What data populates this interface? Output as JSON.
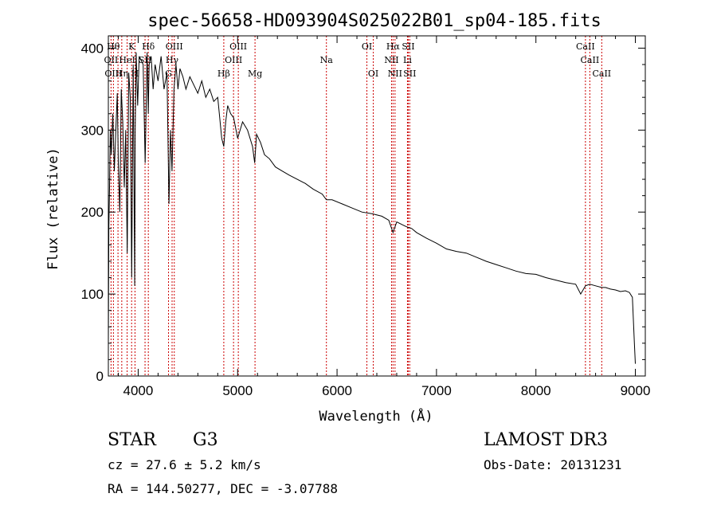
{
  "chart_data": {
    "type": "line",
    "title": "spec-56658-HD093904S025022B01_sp04-185.fits",
    "xlabel": "Wavelength (Å)",
    "ylabel": "Flux (relative)",
    "xlim": [
      3700,
      9100
    ],
    "ylim": [
      0,
      415
    ],
    "xticks": [
      4000,
      5000,
      6000,
      7000,
      8000,
      9000
    ],
    "yticks": [
      0,
      100,
      200,
      300,
      400
    ],
    "tick_labels_x": [
      "4000",
      "5000",
      "6000",
      "7000",
      "8000",
      "9000"
    ],
    "tick_labels_y": [
      "0",
      "100",
      "200",
      "300",
      "400"
    ],
    "series": [
      {
        "name": "flux",
        "x": [
          3700,
          3705,
          3712,
          3720,
          3730,
          3745,
          3760,
          3775,
          3790,
          3800,
          3815,
          3830,
          3845,
          3860,
          3875,
          3890,
          3905,
          3920,
          3935,
          3950,
          3965,
          3970,
          3980,
          3995,
          4010,
          4030,
          4050,
          4070,
          4090,
          4101,
          4110,
          4130,
          4150,
          4170,
          4200,
          4230,
          4260,
          4290,
          4310,
          4325,
          4340,
          4360,
          4380,
          4400,
          4420,
          4450,
          4480,
          4520,
          4560,
          4600,
          4640,
          4680,
          4720,
          4760,
          4800,
          4840,
          4861,
          4880,
          4900,
          4930,
          4960,
          5000,
          5050,
          5100,
          5150,
          5172,
          5190,
          5230,
          5270,
          5320,
          5380,
          5450,
          5520,
          5600,
          5680,
          5760,
          5850,
          5893,
          5950,
          6050,
          6150,
          6250,
          6350,
          6450,
          6520,
          6563,
          6600,
          6650,
          6700,
          6750,
          6800,
          6900,
          7000,
          7100,
          7200,
          7300,
          7400,
          7500,
          7600,
          7700,
          7800,
          7900,
          8000,
          8100,
          8200,
          8300,
          8400,
          8450,
          8498,
          8542,
          8600,
          8662,
          8700,
          8750,
          8800,
          8850,
          8900,
          8940,
          8970,
          8990,
          9000
        ],
        "values": [
          40,
          180,
          230,
          300,
          270,
          320,
          250,
          300,
          345,
          260,
          200,
          350,
          310,
          230,
          300,
          150,
          370,
          340,
          120,
          380,
          110,
          300,
          395,
          330,
          390,
          385,
          380,
          260,
          395,
          320,
          380,
          390,
          350,
          380,
          360,
          390,
          350,
          370,
          210,
          300,
          250,
          350,
          380,
          350,
          375,
          365,
          350,
          365,
          355,
          345,
          360,
          340,
          350,
          335,
          340,
          290,
          280,
          310,
          330,
          320,
          315,
          290,
          310,
          300,
          280,
          260,
          295,
          285,
          270,
          265,
          255,
          250,
          245,
          240,
          235,
          228,
          222,
          215,
          215,
          210,
          205,
          200,
          198,
          195,
          190,
          175,
          188,
          185,
          182,
          180,
          175,
          168,
          162,
          155,
          152,
          150,
          145,
          140,
          136,
          132,
          128,
          125,
          124,
          120,
          117,
          114,
          112,
          100,
          110,
          112,
          110,
          108,
          108,
          106,
          105,
          103,
          104,
          102,
          96,
          40,
          15
        ]
      }
    ],
    "lines": [
      {
        "name": "Hθ",
        "wavelength": 3797
      },
      {
        "name": "OII",
        "wavelength": 3727
      },
      {
        "name": "OIII",
        "wavelength": 3751
      },
      {
        "name": "Hη",
        "wavelength": 3835
      },
      {
        "name": "HeI",
        "wavelength": 3889
      },
      {
        "name": "K",
        "wavelength": 3934
      },
      {
        "name": "H",
        "wavelength": 3968
      },
      {
        "name": "SII",
        "wavelength": 4069
      },
      {
        "name": "Hδ",
        "wavelength": 4102
      },
      {
        "name": "OIII",
        "wavelength": 4363
      },
      {
        "name": "Hγ",
        "wavelength": 4341
      },
      {
        "name": "G",
        "wavelength": 4305
      },
      {
        "name": "Hβ",
        "wavelength": 4861
      },
      {
        "name": "OIII",
        "wavelength": 4959
      },
      {
        "name": "OIII",
        "wavelength": 5007
      },
      {
        "name": "Mg",
        "wavelength": 5175
      },
      {
        "name": "Na",
        "wavelength": 5893
      },
      {
        "name": "OI",
        "wavelength": 6300
      },
      {
        "name": "OI",
        "wavelength": 6364
      },
      {
        "name": "Hα",
        "wavelength": 6563
      },
      {
        "name": "NII",
        "wavelength": 6548
      },
      {
        "name": "NII",
        "wavelength": 6583
      },
      {
        "name": "SII",
        "wavelength": 6716
      },
      {
        "name": "SII",
        "wavelength": 6731
      },
      {
        "name": "Li",
        "wavelength": 6708
      },
      {
        "name": "CaII",
        "wavelength": 8498
      },
      {
        "name": "CaII",
        "wavelength": 8542
      },
      {
        "name": "CaII",
        "wavelength": 8662
      }
    ],
    "label_text": [
      {
        "text": "Hθ",
        "wavelength": 3750,
        "row": 0
      },
      {
        "text": "OII",
        "wavelength": 3727,
        "row": 1
      },
      {
        "text": "OIII",
        "wavelength": 3751,
        "row": 2
      },
      {
        "text": "K",
        "wavelength": 3934,
        "row": 0
      },
      {
        "text": "Hδ",
        "wavelength": 4102,
        "row": 0
      },
      {
        "text": "OIII",
        "wavelength": 4363,
        "row": 0
      },
      {
        "text": "OIII",
        "wavelength": 5007,
        "row": 0
      },
      {
        "text": "OI",
        "wavelength": 6300,
        "row": 0
      },
      {
        "text": "Hα",
        "wavelength": 6563,
        "row": 0
      },
      {
        "text": "SII",
        "wavelength": 6716,
        "row": 0
      },
      {
        "text": "CaII",
        "wavelength": 8498,
        "row": 0
      },
      {
        "text": "HeI",
        "wavelength": 3889,
        "row": 1
      },
      {
        "text": "SII",
        "wavelength": 4069,
        "row": 1
      },
      {
        "text": "Hγ",
        "wavelength": 4341,
        "row": 1
      },
      {
        "text": "OIII",
        "wavelength": 4959,
        "row": 1
      },
      {
        "text": "Na",
        "wavelength": 5893,
        "row": 1
      },
      {
        "text": "NII",
        "wavelength": 6548,
        "row": 1
      },
      {
        "text": "Li",
        "wavelength": 6708,
        "row": 1
      },
      {
        "text": "CaII",
        "wavelength": 8542,
        "row": 1
      },
      {
        "text": "Hη",
        "wavelength": 3835,
        "row": 2
      },
      {
        "text": "H",
        "wavelength": 3968,
        "row": 2
      },
      {
        "text": "G",
        "wavelength": 4305,
        "row": 2
      },
      {
        "text": "Hβ",
        "wavelength": 4861,
        "row": 2
      },
      {
        "text": "Mg",
        "wavelength": 5175,
        "row": 2
      },
      {
        "text": "OI",
        "wavelength": 6364,
        "row": 2
      },
      {
        "text": "NII",
        "wavelength": 6583,
        "row": 2
      },
      {
        "text": "SII",
        "wavelength": 6731,
        "row": 2
      },
      {
        "text": "CaII",
        "wavelength": 8662,
        "row": 2
      }
    ],
    "line_color": "#cc0000"
  },
  "info": {
    "class": "STAR",
    "subclass": "G3",
    "survey": "LAMOST DR3",
    "cz": "cz = 27.6 ± 5.2 km/s",
    "obs_date": "Obs-Date: 20131231",
    "radec": "RA = 144.50277, DEC =  -3.07788"
  }
}
